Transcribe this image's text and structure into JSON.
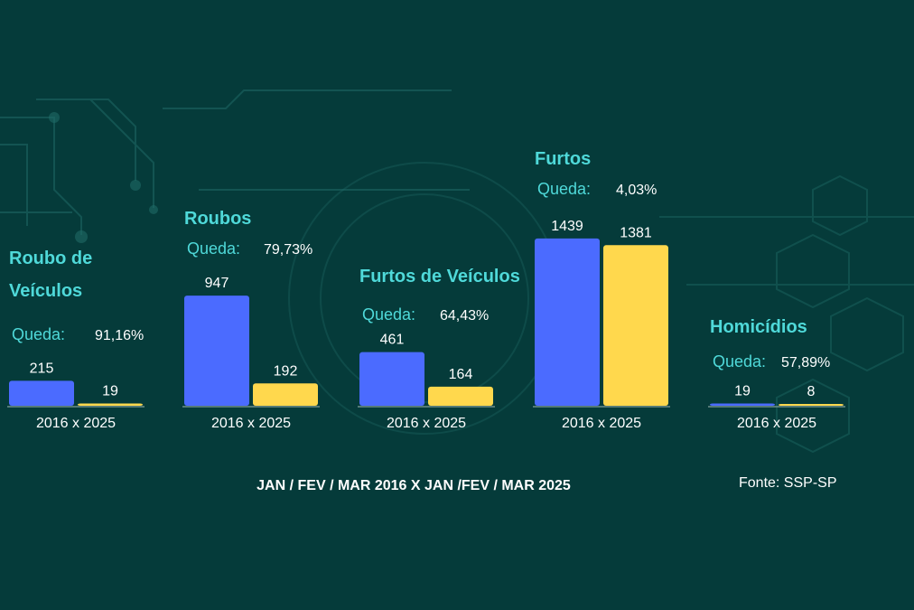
{
  "colors": {
    "background": "#053b3a",
    "series_2016": "#4b6bff",
    "series_2025": "#ffd84d",
    "accent_text": "#4fd9d9",
    "baseline": "#6f8f8a"
  },
  "chart_data": {
    "type": "bar",
    "groups": [
      {
        "title_lines": [
          "Roubo de",
          "Veículos"
        ],
        "queda_label": "Queda:",
        "queda_value": "91,16%",
        "values": [
          215,
          19
        ],
        "tick": "2016 x 2025"
      },
      {
        "title_lines": [
          "Roubos"
        ],
        "queda_label": "Queda:",
        "queda_value": "79,73%",
        "values": [
          947,
          192
        ],
        "tick": "2016 x 2025"
      },
      {
        "title_lines": [
          "Furtos de Veículos"
        ],
        "queda_label": "Queda:",
        "queda_value": "64,43%",
        "values": [
          461,
          164
        ],
        "tick": "2016 x 2025"
      },
      {
        "title_lines": [
          "Furtos"
        ],
        "queda_label": "Queda:",
        "queda_value": "4,03%",
        "values": [
          1439,
          1381
        ],
        "tick": "2016 x 2025"
      },
      {
        "title_lines": [
          "Homicídios"
        ],
        "queda_label": "Queda:",
        "queda_value": "57,89%",
        "values": [
          19,
          8
        ],
        "tick": "2016 x 2025"
      }
    ],
    "series": [
      {
        "values": [
          215,
          947,
          461,
          1439,
          19
        ]
      },
      {
        "values": [
          19,
          192,
          164,
          1381,
          8
        ]
      }
    ],
    "ylim": [
      0,
      1500
    ],
    "grid": false,
    "footer": "JAN / FEV / MAR 2016  X  JAN /FEV / MAR 2025",
    "source": "Fonte: SSP-SP"
  }
}
